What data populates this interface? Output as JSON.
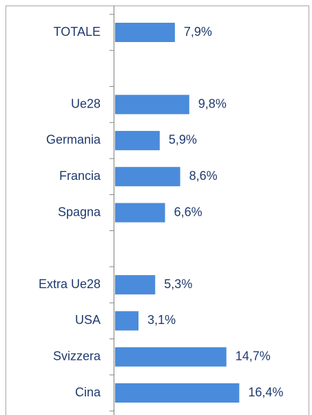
{
  "chart_data": {
    "type": "barh",
    "categories": [
      "TOTALE",
      null,
      "Ue28",
      "Germania",
      "Francia",
      "Spagna",
      null,
      "Extra Ue28",
      "USA",
      "Svizzera",
      "Cina"
    ],
    "values": [
      7.9,
      null,
      9.8,
      5.9,
      8.6,
      6.6,
      null,
      5.3,
      3.1,
      14.7,
      16.4
    ],
    "value_labels": [
      "7,9%",
      null,
      "9,8%",
      "5,9%",
      "8,6%",
      "6,6%",
      null,
      "5,3%",
      "3,1%",
      "14,7%",
      "16,4%"
    ],
    "color": "#4a8bdb"
  }
}
